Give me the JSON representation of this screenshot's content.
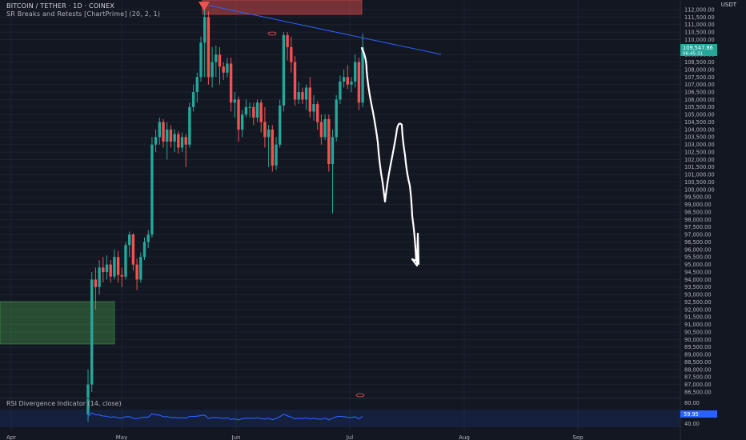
{
  "header": {
    "symbol_line": "BITCOIN / TETHER · 1D · COINEX",
    "indicator_line": "SR Breaks and Retests [ChartPrime] (20, 2, 1)"
  },
  "currency": "USDT",
  "price_axis": {
    "labels": [
      "112,000.00",
      "111,500.00",
      "111,000.00",
      "110,500.00",
      "110,000.00",
      "109,000.00",
      "108,500.00",
      "108,000.00",
      "107,500.00",
      "107,000.00",
      "106,500.00",
      "106,000.00",
      "105,500.00",
      "105,000.00",
      "104,500.00",
      "104,000.00",
      "103,500.00",
      "103,000.00",
      "102,500.00",
      "102,000.00",
      "101,500.00",
      "101,000.00",
      "100,500.00",
      "100,000.00",
      "99,500.00",
      "99,000.00",
      "98,500.00",
      "98,000.00",
      "97,500.00",
      "97,000.00",
      "96,500.00",
      "96,000.00",
      "95,500.00",
      "95,000.00",
      "94,500.00",
      "94,000.00",
      "93,500.00",
      "93,000.00",
      "92,500.00",
      "92,000.00",
      "91,500.00",
      "91,000.00",
      "90,500.00",
      "90,000.00",
      "89,500.00",
      "89,000.00",
      "88,500.00",
      "88,000.00",
      "87,500.00",
      "87,000.00",
      "86,500.00"
    ],
    "current_price": "109,547.86",
    "countdown": "06:45:31"
  },
  "rsi": {
    "title": "RSI Divergence Indicator (14, close)",
    "labels": [
      "80.00",
      "40.00"
    ],
    "current_value": "59.95"
  },
  "time_axis": [
    "Apr",
    "May",
    "Jun",
    "Jul",
    "Aug",
    "Sep"
  ],
  "colors": {
    "background": "#131722",
    "bull": "#26a69a",
    "bear": "#ef5350",
    "trendline": "#2962ff",
    "rsi_line": "#2962ff",
    "forecast": "#ffffff",
    "resistance_zone": "#ef5350",
    "support_zone": "#4caf50"
  },
  "chart_data": {
    "type": "candlestick",
    "x_axis": [
      "Apr",
      "May",
      "Jun",
      "Jul",
      "Aug",
      "Sep"
    ],
    "y_range": [
      86000,
      112500
    ],
    "resistance_zone": [
      110500,
      112500
    ],
    "support_zone": [
      89700,
      92500
    ],
    "trendline": [
      [
        111900,
        "May"
      ],
      [
        109000,
        "Jul"
      ]
    ],
    "current_price": 109547.86,
    "candles": [
      [
        85000,
        87000,
        84500,
        88000
      ],
      [
        87000,
        94000,
        86500,
        94500
      ],
      [
        94000,
        93500,
        92000,
        94800
      ],
      [
        93500,
        94800,
        93000,
        95300
      ],
      [
        94800,
        94500,
        93800,
        95500
      ],
      [
        94500,
        95000,
        94000,
        95600
      ],
      [
        95000,
        94200,
        93800,
        95300
      ],
      [
        94200,
        95500,
        94000,
        96000
      ],
      [
        95500,
        94300,
        93800,
        95900
      ],
      [
        94300,
        94200,
        93500,
        94800
      ],
      [
        94200,
        96300,
        94000,
        96500
      ],
      [
        96300,
        97000,
        95500,
        97200
      ],
      [
        97000,
        95000,
        94600,
        97100
      ],
      [
        95000,
        94000,
        93300,
        95400
      ],
      [
        94000,
        95500,
        93800,
        95800
      ],
      [
        95500,
        96500,
        95300,
        96800
      ],
      [
        96500,
        97000,
        96100,
        97300
      ],
      [
        97000,
        103000,
        96800,
        103500
      ],
      [
        103000,
        103500,
        102500,
        104000
      ],
      [
        103500,
        104500,
        103000,
        104800
      ],
      [
        104500,
        103200,
        102800,
        104700
      ],
      [
        103200,
        104000,
        102000,
        104500
      ],
      [
        104000,
        103200,
        102800,
        104300
      ],
      [
        103200,
        103700,
        102500,
        104000
      ],
      [
        103700,
        102800,
        102400,
        103900
      ],
      [
        102800,
        103500,
        102500,
        103800
      ],
      [
        103500,
        103000,
        101500,
        103700
      ],
      [
        103000,
        105500,
        102800,
        105800
      ],
      [
        105500,
        106500,
        105200,
        107000
      ],
      [
        106500,
        107500,
        105800,
        107800
      ],
      [
        107500,
        109800,
        107200,
        110200
      ],
      [
        109800,
        111500,
        107500,
        112000
      ],
      [
        111500,
        107500,
        107000,
        111900
      ],
      [
        107500,
        108500,
        106800,
        109500
      ],
      [
        108500,
        109000,
        107500,
        109600
      ],
      [
        109000,
        108200,
        107000,
        109500
      ],
      [
        108200,
        107800,
        107300,
        108500
      ],
      [
        107800,
        108400,
        107500,
        108800
      ],
      [
        108400,
        105800,
        105200,
        108800
      ],
      [
        105800,
        106000,
        104800,
        106500
      ],
      [
        106000,
        104000,
        103200,
        106200
      ],
      [
        104000,
        105000,
        103500,
        105300
      ],
      [
        105000,
        105500,
        104800,
        106000
      ],
      [
        105500,
        105500,
        104800,
        105800
      ],
      [
        105500,
        104800,
        104300,
        105800
      ],
      [
        104800,
        105800,
        104500,
        106000
      ],
      [
        105800,
        104500,
        103800,
        106000
      ],
      [
        104500,
        103500,
        102800,
        105500
      ],
      [
        103500,
        104000,
        101500,
        104300
      ],
      [
        104000,
        101600,
        101200,
        104300
      ],
      [
        101600,
        103000,
        101300,
        103500
      ],
      [
        103000,
        105600,
        102800,
        106000
      ],
      [
        105600,
        110300,
        105200,
        110500
      ],
      [
        110300,
        109500,
        108600,
        110500
      ],
      [
        109500,
        108500,
        107800,
        110200
      ],
      [
        108500,
        106000,
        105600,
        108900
      ],
      [
        106000,
        106500,
        105700,
        107200
      ],
      [
        106500,
        106000,
        105700,
        106800
      ],
      [
        106000,
        106800,
        105300,
        107000
      ],
      [
        106800,
        105200,
        104800,
        107500
      ],
      [
        105200,
        105700,
        104600,
        106300
      ],
      [
        105700,
        104500,
        104000,
        105900
      ],
      [
        104500,
        103500,
        103000,
        105000
      ],
      [
        103500,
        104700,
        103300,
        105000
      ],
      [
        104700,
        101700,
        101200,
        105000
      ],
      [
        101700,
        103500,
        98400,
        104000
      ],
      [
        103500,
        106000,
        103200,
        106300
      ],
      [
        106000,
        107200,
        105700,
        107600
      ],
      [
        107200,
        107500,
        106800,
        108000
      ],
      [
        107500,
        107000,
        106700,
        108300
      ],
      [
        107000,
        107200,
        106500,
        107500
      ],
      [
        107200,
        108500,
        106800,
        109000
      ],
      [
        108500,
        105800,
        105300,
        108800
      ],
      [
        105800,
        109500,
        105500,
        110400
      ]
    ]
  }
}
